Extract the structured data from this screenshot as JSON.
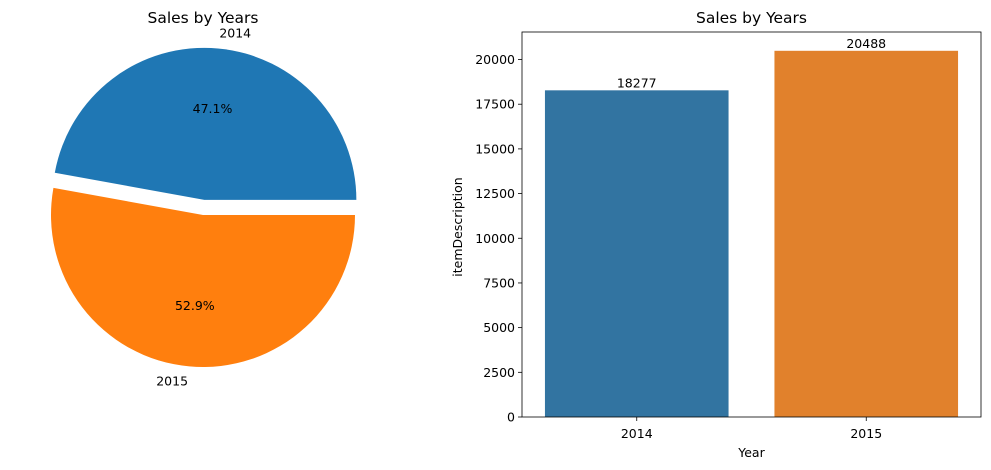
{
  "chart_data": [
    {
      "type": "pie",
      "title": "Sales by Years",
      "slices": [
        {
          "label": "2014",
          "value": 18277,
          "pct_label": "47.1%",
          "color": "#1f77b4",
          "explode": 0.1
        },
        {
          "label": "2015",
          "value": 20488,
          "pct_label": "52.9%",
          "color": "#ff7f0e",
          "explode": 0
        }
      ]
    },
    {
      "type": "bar",
      "title": "Sales by Years",
      "xlabel": "Year",
      "ylabel": "itemDescription",
      "categories": [
        "2014",
        "2015"
      ],
      "values": [
        18277,
        20488
      ],
      "value_labels": [
        "18277",
        "20488"
      ],
      "colors": [
        "#3274a1",
        "#e1812c"
      ],
      "ylim": [
        0,
        21540
      ],
      "yticks": [
        0,
        2500,
        5000,
        7500,
        10000,
        12500,
        15000,
        17500,
        20000
      ],
      "grid": false
    }
  ]
}
